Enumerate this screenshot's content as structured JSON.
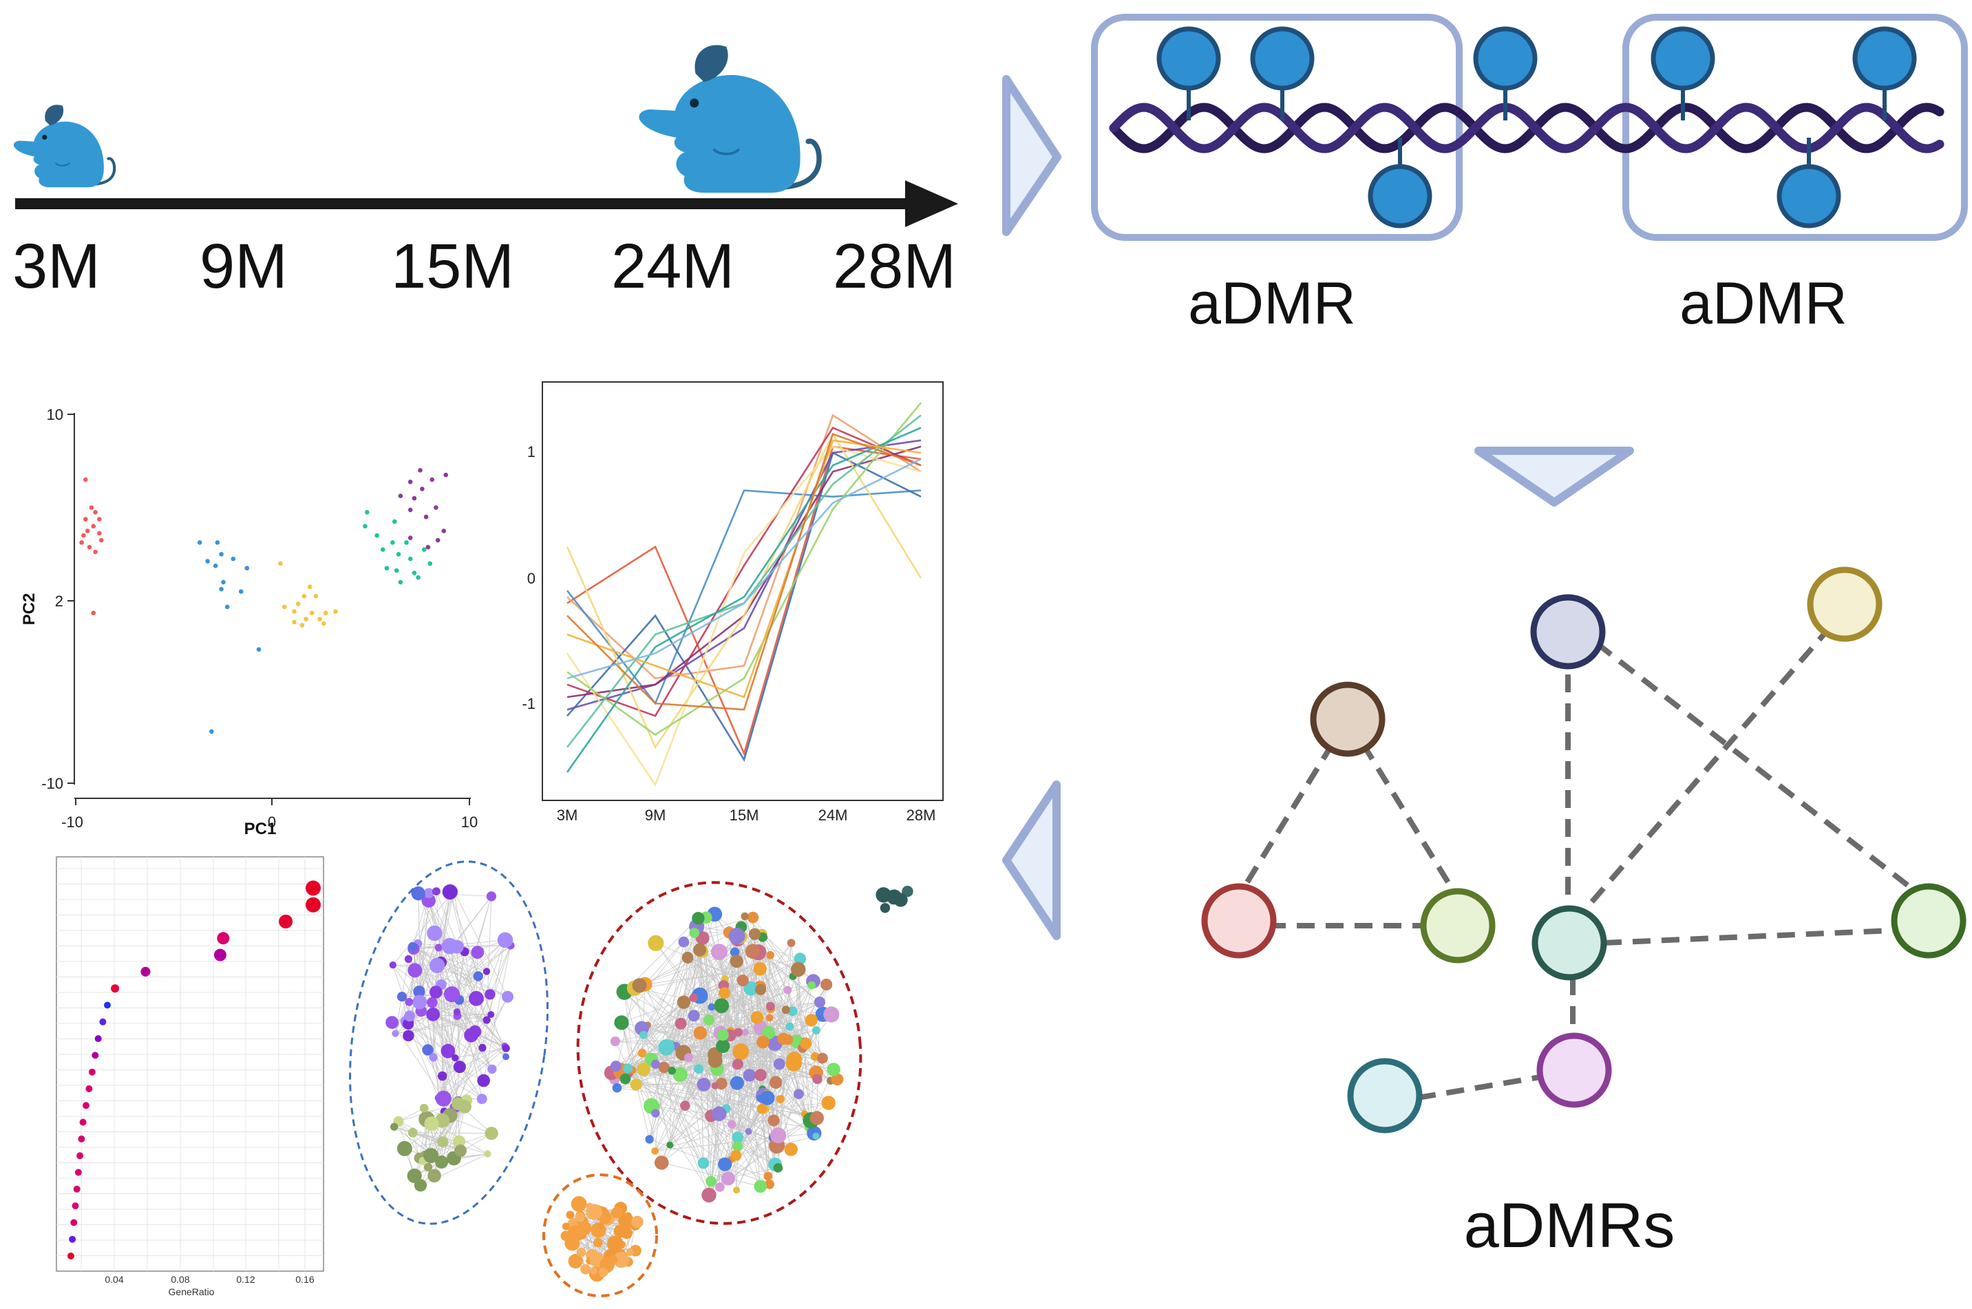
{
  "timeline": {
    "labels": [
      "3M",
      "9M",
      "15M",
      "24M",
      "28M"
    ]
  },
  "dmr_panel": {
    "left_label": "aDMR",
    "right_label": "aDMR"
  },
  "network_panel": {
    "label": "aDMRs",
    "nodes": [
      {
        "id": "n1",
        "fill": "#e3d3c4",
        "stroke": "#5a3d2b"
      },
      {
        "id": "n2",
        "fill": "#d5d9ea",
        "stroke": "#2c3460"
      },
      {
        "id": "n3",
        "fill": "#f4f0d1",
        "stroke": "#a58b2e"
      },
      {
        "id": "n4",
        "fill": "#f8dcdc",
        "stroke": "#a33a3a"
      },
      {
        "id": "n5",
        "fill": "#e8f3d6",
        "stroke": "#5c7a2a"
      },
      {
        "id": "n6",
        "fill": "#d3ece6",
        "stroke": "#2a5a50"
      },
      {
        "id": "n7",
        "fill": "#e3f4da",
        "stroke": "#3d6b25"
      },
      {
        "id": "n8",
        "fill": "#dbf0f2",
        "stroke": "#2c6e7a"
      },
      {
        "id": "n9",
        "fill": "#f1ddf5",
        "stroke": "#8a3d96"
      }
    ]
  },
  "colors": {
    "mouse": "#3498d3",
    "mouse_dark": "#2c5d80",
    "methyl": "#2e8fd1",
    "methyl_stroke": "#1f4f7a",
    "box_stroke": "#9aacd6",
    "arrow_fill": "#e6eefa",
    "arrow_stroke": "#9aacd6",
    "dna": "#2a1a55"
  },
  "pca_plot": {
    "xlabel": "PC1",
    "ylabel": "PC2",
    "x_ticks": [
      "-10",
      "0",
      "10"
    ],
    "y_ticks": [
      "10",
      "2",
      "-10"
    ]
  },
  "line_plot": {
    "x_ticks": [
      "3M",
      "9M",
      "15M",
      "24M",
      "28M"
    ],
    "y_ticks": [
      "1",
      "0",
      "-1"
    ]
  },
  "dot_plot": {
    "xlabel": "GeneRatio",
    "x_ticks": [
      "0.04",
      "0.08",
      "0.12",
      "0.16"
    ]
  },
  "chart_data": [
    {
      "type": "scatter",
      "title": "",
      "xlabel": "PC1",
      "ylabel": "PC2",
      "xlim": [
        -10.5,
        10
      ],
      "ylim": [
        -10,
        10
      ],
      "series": [
        {
          "color": "#f05b5b",
          "points": [
            [
              -9.2,
              6.0
            ],
            [
              -9.5,
              5.5
            ],
            [
              -9.1,
              5.2
            ],
            [
              -9.4,
              5.0
            ],
            [
              -9.6,
              4.8
            ],
            [
              -9.0,
              5.8
            ],
            [
              -8.8,
              4.9
            ],
            [
              -9.3,
              4.3
            ],
            [
              -9.7,
              4.5
            ],
            [
              -9.0,
              4.1
            ],
            [
              -8.8,
              5.5
            ],
            [
              -9.5,
              7.2
            ],
            [
              -9.1,
              1.2
            ],
            [
              -8.7,
              4.6
            ]
          ]
        },
        {
          "color": "#3a93d8",
          "points": [
            [
              -3.7,
              4.5
            ],
            [
              -2.8,
              4.5
            ],
            [
              -2.6,
              4.0
            ],
            [
              -2.9,
              3.5
            ],
            [
              -3.3,
              3.7
            ],
            [
              -2.5,
              2.8
            ],
            [
              -2.0,
              3.8
            ],
            [
              -2.6,
              2.5
            ],
            [
              -1.6,
              2.4
            ],
            [
              -2.3,
              1.6
            ],
            [
              -1.3,
              3.4
            ],
            [
              -0.7,
              -1.2
            ],
            [
              -3.1,
              -6.6
            ]
          ]
        },
        {
          "color": "#f5c343",
          "points": [
            [
              0.4,
              3.6
            ],
            [
              1.9,
              2.6
            ],
            [
              2.2,
              2.2
            ],
            [
              1.6,
              2.2
            ],
            [
              1.3,
              1.8
            ],
            [
              0.6,
              1.6
            ],
            [
              1.1,
              1.3
            ],
            [
              1.7,
              0.8
            ],
            [
              2.0,
              1.2
            ],
            [
              2.4,
              0.8
            ],
            [
              2.7,
              1.2
            ],
            [
              3.2,
              1.3
            ],
            [
              2.6,
              0.5
            ],
            [
              1.1,
              0.6
            ],
            [
              1.5,
              0.4
            ]
          ]
        },
        {
          "color": "#1dc49c",
          "points": [
            [
              4.8,
              5.8
            ],
            [
              4.7,
              5.2
            ],
            [
              5.6,
              4.2
            ],
            [
              6.1,
              4.5
            ],
            [
              5.3,
              4.8
            ],
            [
              6.4,
              4.0
            ],
            [
              6.3,
              3.3
            ],
            [
              7.0,
              3.8
            ],
            [
              7.4,
              3.0
            ],
            [
              8.0,
              3.6
            ],
            [
              7.7,
              4.2
            ],
            [
              6.8,
              4.5
            ],
            [
              6.5,
              2.8
            ],
            [
              5.8,
              3.4
            ],
            [
              7.2,
              3.2
            ],
            [
              6.2,
              5.4
            ]
          ]
        },
        {
          "color": "#8c3b9c",
          "points": [
            [
              7.5,
              7.6
            ],
            [
              7.0,
              7.1
            ],
            [
              8.1,
              7.2
            ],
            [
              7.6,
              6.8
            ],
            [
              7.2,
              6.4
            ],
            [
              8.3,
              6.0
            ],
            [
              7.0,
              5.9
            ],
            [
              8.7,
              5.0
            ],
            [
              7.8,
              5.6
            ],
            [
              8.4,
              4.6
            ],
            [
              7.0,
              4.7
            ],
            [
              6.5,
              6.5
            ],
            [
              8.8,
              7.4
            ],
            [
              7.9,
              4.3
            ]
          ]
        }
      ]
    },
    {
      "type": "line",
      "title": "",
      "categories": [
        "3M",
        "9M",
        "15M",
        "24M",
        "28M"
      ],
      "ylim": [
        -1.8,
        1.6
      ],
      "series": [
        {
          "color": "#e85a3d",
          "values": [
            -0.2,
            0.25,
            -1.4,
            1.05,
            0.95
          ]
        },
        {
          "color": "#f0a070",
          "values": [
            -0.15,
            -0.8,
            -0.7,
            1.3,
            0.85
          ]
        },
        {
          "color": "#4a8fc7",
          "values": [
            -0.1,
            -1.0,
            0.7,
            0.65,
            0.7
          ]
        },
        {
          "color": "#3f6fb0",
          "values": [
            -1.1,
            -0.3,
            -1.45,
            1.0,
            0.65
          ]
        },
        {
          "color": "#6c4db0",
          "values": [
            -1.05,
            -0.85,
            -0.4,
            1.0,
            1.1
          ]
        },
        {
          "color": "#c2385a",
          "values": [
            -0.85,
            -1.1,
            0.1,
            1.2,
            0.9
          ]
        },
        {
          "color": "#8f2f6e",
          "values": [
            -0.95,
            -0.85,
            -0.3,
            0.85,
            1.05
          ]
        },
        {
          "color": "#f5d77a",
          "values": [
            0.25,
            -1.35,
            -0.3,
            1.15,
            0.0
          ]
        },
        {
          "color": "#f7e19b",
          "values": [
            -0.6,
            -1.65,
            0.2,
            1.05,
            0.85
          ]
        },
        {
          "color": "#9bd46b",
          "values": [
            -0.75,
            -1.25,
            -0.8,
            0.55,
            1.4
          ]
        },
        {
          "color": "#5cc49a",
          "values": [
            -1.35,
            -0.45,
            -0.2,
            0.75,
            1.3
          ]
        },
        {
          "color": "#2aa7a0",
          "values": [
            -1.55,
            -0.55,
            -0.15,
            0.9,
            1.2
          ]
        },
        {
          "color": "#f3b13b",
          "values": [
            -0.45,
            -0.7,
            -0.95,
            1.1,
            1.0
          ]
        },
        {
          "color": "#d87a2b",
          "values": [
            -0.3,
            -1.0,
            -1.05,
            1.15,
            0.9
          ]
        },
        {
          "color": "#7fb7e6",
          "values": [
            -0.8,
            -0.6,
            -0.2,
            0.6,
            0.95
          ]
        }
      ]
    },
    {
      "type": "scatter",
      "title": "",
      "xlabel": "GeneRatio",
      "xlim": [
        0,
        0.17
      ],
      "series": [
        {
          "name": "",
          "points": [
            [
              0.004,
              1,
              "#e60026",
              5
            ],
            [
              0.005,
              2,
              "#6a1be0",
              5
            ],
            [
              0.006,
              3,
              "#d9006e",
              5
            ],
            [
              0.007,
              4,
              "#d9006e",
              5
            ],
            [
              0.008,
              5,
              "#d9006e",
              5
            ],
            [
              0.009,
              6,
              "#d9006e",
              5
            ],
            [
              0.01,
              7,
              "#d9006e",
              5
            ],
            [
              0.011,
              8,
              "#d9006e",
              5
            ],
            [
              0.012,
              9,
              "#d9006e",
              5
            ],
            [
              0.014,
              10,
              "#d9006e",
              5
            ],
            [
              0.016,
              11,
              "#d9006e",
              5
            ],
            [
              0.018,
              12,
              "#d9006e",
              5
            ],
            [
              0.02,
              13,
              "#b0009c",
              5
            ],
            [
              0.022,
              14,
              "#8d00c8",
              5
            ],
            [
              0.025,
              15,
              "#5a24e8",
              5
            ],
            [
              0.028,
              16,
              "#2233f0",
              5
            ],
            [
              0.033,
              17,
              "#e8003a",
              6
            ],
            [
              0.053,
              18,
              "#b0009c",
              7
            ],
            [
              0.102,
              19,
              "#b0009c",
              9
            ],
            [
              0.104,
              20,
              "#d9006e",
              9
            ],
            [
              0.145,
              21,
              "#e60032",
              10
            ],
            [
              0.163,
              22,
              "#e60026",
              11
            ],
            [
              0.163,
              23,
              "#e60026",
              11
            ]
          ]
        }
      ]
    }
  ]
}
